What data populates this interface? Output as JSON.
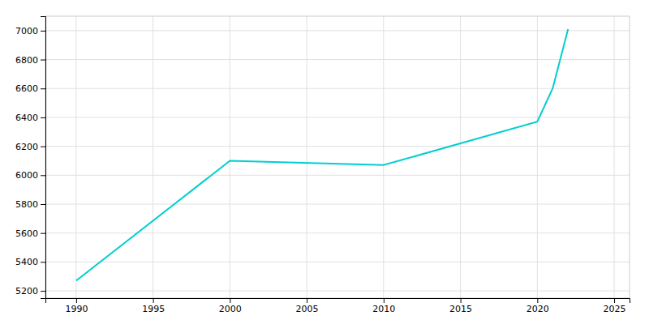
{
  "chart_data": {
    "type": "line",
    "x": [
      1990,
      2000,
      2010,
      2020,
      2021,
      2022
    ],
    "values": [
      5270,
      6100,
      6070,
      6370,
      6600,
      7010
    ],
    "color": "#00CED1",
    "xlim": [
      1988,
      2026
    ],
    "ylim": [
      5150,
      7100
    ],
    "xticks": [
      1990,
      1995,
      2000,
      2005,
      2010,
      2015,
      2020,
      2025
    ],
    "yticks": [
      5200,
      5400,
      5600,
      5800,
      6000,
      6200,
      6400,
      6600,
      6800,
      7000
    ],
    "grid": true
  }
}
